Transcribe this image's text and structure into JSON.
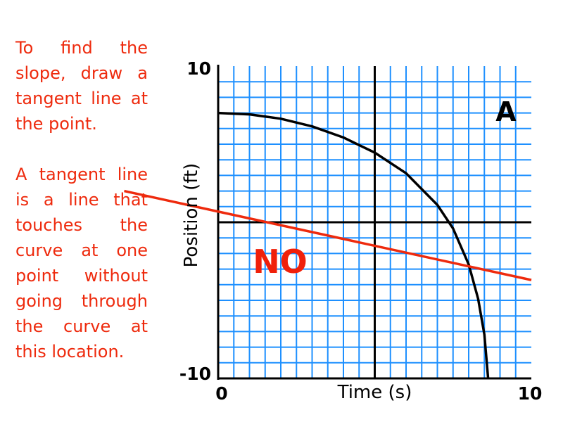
{
  "text": {
    "paragraph1": "To find the slope, draw a tangent line at the point.",
    "paragraph2": "A tangent line is a line that touches the curve at one point without going through the curve at this location."
  },
  "colors": {
    "text": "#ee2a0d",
    "grid": "#1e90ff",
    "axis": "#000000",
    "curve": "#000000",
    "line": "#ee2a0d"
  },
  "chart_data": {
    "type": "line",
    "title": "",
    "xlabel": "Time (s)",
    "ylabel": "Position (ft)",
    "xlim": [
      0,
      10
    ],
    "ylim": [
      -10,
      10
    ],
    "x_tick_labels": [
      "0",
      "10"
    ],
    "y_tick_labels": [
      "10",
      "-10"
    ],
    "grid": true,
    "annotations": {
      "quadrant_label": "A",
      "verdict_label": "NO"
    },
    "series": [
      {
        "points": [
          {
            "x": 0.0,
            "y": 7.0
          },
          {
            "x": 1.0,
            "y": 6.91
          },
          {
            "x": 2.0,
            "y": 6.63
          },
          {
            "x": 3.0,
            "y": 6.14
          },
          {
            "x": 4.0,
            "y": 5.43
          },
          {
            "x": 5.0,
            "y": 4.46
          },
          {
            "x": 6.0,
            "y": 3.14
          },
          {
            "x": 7.0,
            "y": 1.11
          },
          {
            "x": 7.5,
            "y": -0.4
          },
          {
            "x": 8.0,
            "y": -2.7
          },
          {
            "x": 8.3,
            "y": -4.9
          },
          {
            "x": 8.5,
            "y": -7.2
          },
          {
            "x": 8.62,
            "y": -10.0
          }
        ]
      },
      {
        "points": [
          {
            "x": -3.0,
            "y": 2.0
          },
          {
            "x": 10.0,
            "y": -3.7
          }
        ]
      }
    ]
  }
}
